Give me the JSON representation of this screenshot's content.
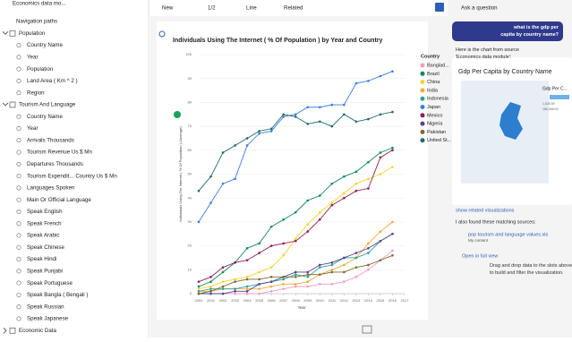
{
  "toolbar": {
    "app": "Economics data mo...",
    "new": "New",
    "page": "1/2",
    "chart_type": "Line",
    "related": "Related"
  },
  "sidebar": {
    "navigation": "Navigation paths",
    "groups": [
      {
        "name": "Population",
        "expanded": true,
        "fields": [
          "Country Name",
          "Year",
          "Population",
          "Land Area ( Km ^ 2 )",
          "Region"
        ]
      },
      {
        "name": "Tourism And Language",
        "expanded": true,
        "fields": [
          "Country Name",
          "Year",
          "Arrivals Thousands",
          "Tourism Revenue Us $ Mn",
          "Departures Thousands",
          "Tourism Expendit... Country Us $ Mn",
          "Languages Spoken",
          "Main Or Official Language",
          "Speak English",
          "Speak French",
          "Speak Arabic",
          "Speak Chinese",
          "Speak Hindi",
          "Speak Punjabi",
          "Speak Portuguese",
          "Speak Bangla ( Bengali )",
          "Speak Russian",
          "Speak Japanese"
        ]
      },
      {
        "name": "Economic Data",
        "expanded": false,
        "fields": []
      }
    ]
  },
  "chart_data": {
    "type": "line",
    "title": "Individuals Using The Internet ( % Of Population ) by Year and Country",
    "x_label": "Year",
    "y_label": "Individuals Using The Internet ( % Of Population ) (Average)",
    "legend_title": "Country",
    "x": [
      2000,
      2001,
      2002,
      2003,
      2004,
      2005,
      2006,
      2007,
      2008,
      2009,
      2010,
      2011,
      2012,
      2013,
      2014,
      2015,
      2016
    ],
    "xlim": [
      2000,
      2017
    ],
    "xticks": [
      2000,
      2001,
      2002,
      2003,
      2004,
      2005,
      2006,
      2007,
      2008,
      2009,
      2010,
      2011,
      2012,
      2013,
      2014,
      2015,
      2016,
      2017
    ],
    "ylim": [
      0,
      100
    ],
    "yticks": [
      0,
      10,
      20,
      30,
      40,
      50,
      60,
      70,
      80,
      90,
      100
    ],
    "grid": true,
    "legend": "right",
    "series": [
      {
        "name": "Banglad...",
        "color": "#f19cc4",
        "values": [
          0,
          0,
          0,
          0,
          0,
          0,
          1,
          2,
          3,
          3,
          4,
          4,
          5,
          7,
          10,
          14,
          18
        ]
      },
      {
        "name": "Brazil",
        "color": "#13885a",
        "values": [
          3,
          5,
          9,
          13,
          19,
          21,
          28,
          31,
          34,
          39,
          41,
          46,
          49,
          51,
          55,
          59,
          61
        ]
      },
      {
        "name": "China",
        "color": "#f3d333",
        "values": [
          2,
          3,
          5,
          6,
          7,
          9,
          11,
          16,
          23,
          29,
          34,
          38,
          42,
          46,
          48,
          50,
          53
        ]
      },
      {
        "name": "India",
        "color": "#f4a93a",
        "values": [
          1,
          1,
          2,
          2,
          2,
          2,
          3,
          4,
          4,
          5,
          8,
          10,
          12,
          15,
          21,
          26,
          30
        ]
      },
      {
        "name": "Indonesia",
        "color": "#2aa39a",
        "values": [
          1,
          2,
          2,
          2,
          3,
          4,
          5,
          6,
          8,
          7,
          11,
          12,
          15,
          15,
          17,
          22,
          25
        ]
      },
      {
        "name": "Japan",
        "color": "#3b7ddb",
        "values": [
          30,
          38,
          46,
          48,
          62,
          67,
          68,
          74,
          75,
          78,
          78,
          79,
          79,
          88,
          89,
          91,
          93
        ]
      },
      {
        "name": "Mexico",
        "color": "#8e1f52",
        "values": [
          5,
          7,
          11,
          13,
          14,
          17,
          20,
          21,
          22,
          26,
          31,
          37,
          40,
          43,
          44,
          57,
          60
        ]
      },
      {
        "name": "Nigeria",
        "color": "#5b3f8f",
        "values": [
          0,
          0,
          0,
          1,
          1,
          4,
          5,
          7,
          9,
          9,
          12,
          13,
          15,
          17,
          19,
          22,
          25
        ]
      },
      {
        "name": "Pakistan",
        "color": "#7d6a2c",
        "values": [
          0,
          1,
          3,
          5,
          6,
          6,
          7,
          7,
          7,
          8,
          8,
          9,
          9,
          11,
          12,
          14,
          16
        ]
      },
      {
        "name": "United St...",
        "color": "#1f6b66",
        "values": [
          43,
          49,
          59,
          62,
          65,
          68,
          69,
          75,
          74,
          71,
          72,
          70,
          75,
          72,
          73,
          75,
          76
        ]
      }
    ]
  },
  "chat": {
    "ask": "Ask a question",
    "question": "what is the gdp per capita by country name?",
    "answer": "Here is the chart from source 'Economics data module':",
    "card_title": "Gdp Per Capita by Country Name",
    "card_legend": "Gdp Per C...",
    "card_min": "1,026.59",
    "card_max": "186,368.00",
    "related": "show related visualizations",
    "sources": "I also found these matching sources:",
    "file": "pop tourism and language values.xls",
    "file_loc": "My content",
    "open": "Open in full view"
  },
  "hint": "Drag and drop data to the slots above to build and filter the visualization."
}
